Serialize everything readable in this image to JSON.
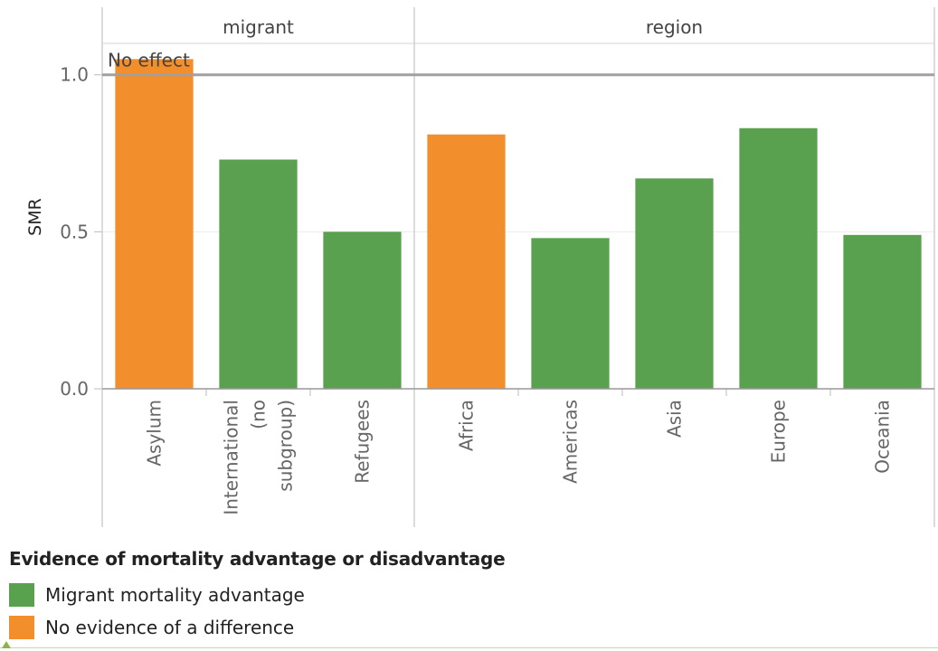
{
  "chart_data": {
    "type": "bar",
    "ylabel": "SMR",
    "ylim": [
      0,
      1.1
    ],
    "yticks": [
      0.0,
      0.5,
      1.0
    ],
    "ytick_labels": [
      "0.0",
      "0.5",
      "1.0"
    ],
    "reference_line": {
      "value": 1.0,
      "label": "No effect"
    },
    "panels": [
      {
        "name": "migrant",
        "categories": [
          "Asylum",
          "International (no subgroup)",
          "Refugees"
        ],
        "category_lines": [
          [
            "Asylum"
          ],
          [
            "International",
            "(no",
            "subgroup)"
          ],
          [
            "Refugees"
          ]
        ],
        "values": [
          1.05,
          0.73,
          0.5
        ],
        "groups": [
          "No evidence of a difference",
          "Migrant mortality advantage",
          "Migrant mortality advantage"
        ]
      },
      {
        "name": "region",
        "categories": [
          "Africa",
          "Americas",
          "Asia",
          "Europe",
          "Oceania"
        ],
        "category_lines": [
          [
            "Africa"
          ],
          [
            "Americas"
          ],
          [
            "Asia"
          ],
          [
            "Europe"
          ],
          [
            "Oceania"
          ]
        ],
        "values": [
          0.81,
          0.48,
          0.67,
          0.83,
          0.49
        ],
        "groups": [
          "No evidence of a difference",
          "Migrant mortality advantage",
          "Migrant mortality advantage",
          "Migrant mortality advantage",
          "Migrant mortality advantage"
        ]
      }
    ],
    "legend": {
      "title": "Evidence of mortality advantage or disadvantage",
      "placement": "bottom-left",
      "items": [
        {
          "label": "Migrant mortality advantage",
          "color": "#59a14f"
        },
        {
          "label": "No evidence of a difference",
          "color": "#f28e2b"
        }
      ]
    },
    "grid": true
  }
}
